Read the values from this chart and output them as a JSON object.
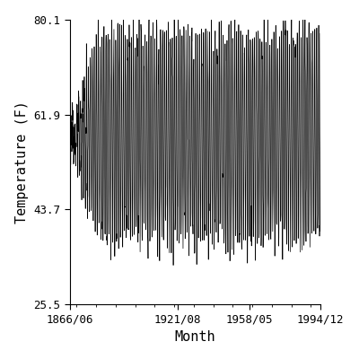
{
  "title": "",
  "xlabel": "Month",
  "ylabel": "Temperature (F)",
  "ylim": [
    25.5,
    80.1
  ],
  "yticks": [
    25.5,
    43.7,
    61.9,
    80.1
  ],
  "xtick_labels": [
    "1866/06",
    "1921/08",
    "1958/05",
    "1994/12"
  ],
  "start_year": 1866,
  "start_month": 6,
  "end_year": 1994,
  "end_month": 12,
  "mean_temp": 57.8,
  "amplitude_full": 19.5,
  "background_color": "#ffffff",
  "line_color": "#000000",
  "line_width": 0.5,
  "font_family": "monospace",
  "font_size_tick": 9,
  "font_size_label": 11
}
